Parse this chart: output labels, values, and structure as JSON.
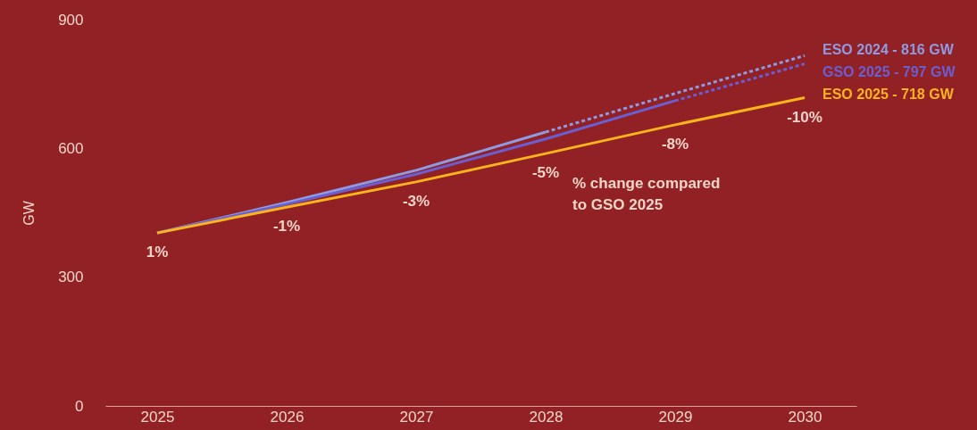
{
  "chart_data": {
    "type": "line",
    "ylabel": "GW",
    "categories": [
      "2025",
      "2026",
      "2027",
      "2028",
      "2029",
      "2030"
    ],
    "ylim": [
      0,
      900
    ],
    "yticks": [
      0,
      300,
      600,
      900
    ],
    "grid": false,
    "marker": "none",
    "series": [
      {
        "color": "#8e9be3",
        "line_style": "solid",
        "values": [
          403,
          474,
          549,
          638,
          null,
          null
        ]
      },
      {
        "name": "ESO 2024 - 816 GW",
        "color": "#8e9be3",
        "line_style": "dashed",
        "values": [
          null,
          null,
          null,
          638,
          728,
          816
        ]
      },
      {
        "color": "#6a5fd2",
        "line_style": "solid",
        "values": [
          403,
          470,
          540,
          622,
          711,
          null
        ]
      },
      {
        "name": "GSO 2025 - 797 GW",
        "color": "#6a5fd2",
        "line_style": "dashed",
        "values": [
          null,
          null,
          null,
          null,
          711,
          797
        ]
      },
      {
        "name": "ESO 2025 - 718 GW",
        "color": "#fbb41c",
        "line_style": "solid",
        "values": [
          403,
          463,
          522,
          588,
          655,
          718
        ]
      }
    ],
    "annotations": [
      {
        "text": "1%",
        "x": "2025",
        "y": 403
      },
      {
        "text": "-1%",
        "x": "2026",
        "y": 463
      },
      {
        "text": "-3%",
        "x": "2027",
        "y": 522
      },
      {
        "text": "-5%",
        "x": "2028",
        "y": 588
      },
      {
        "text": "-8%",
        "x": "2029",
        "y": 655
      },
      {
        "text": "-10%",
        "x": "2030",
        "y": 718
      },
      "% change compared\nto GSO 2025"
    ]
  }
}
